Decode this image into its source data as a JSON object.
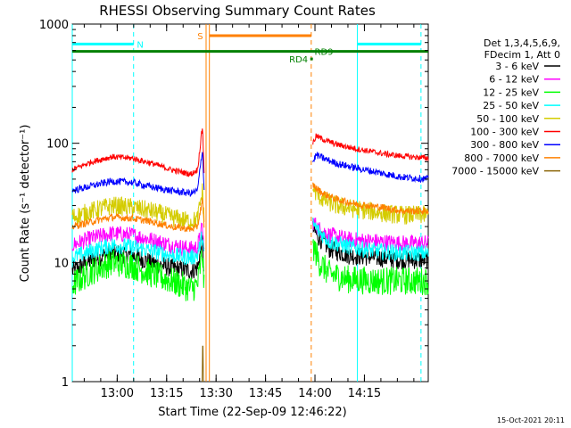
{
  "chart_data": {
    "type": "line",
    "title": "RHESSI Observing Summary Count Rates",
    "xlabel": "Start Time (22-Sep-09 12:46:22)",
    "ylabel": "Count Rate (s⁻¹ detector⁻¹)",
    "yscale": "log",
    "ylim": [
      1,
      1000
    ],
    "xlim_minutes": [
      0,
      108
    ],
    "x_unit": "minutes after 12:46:22",
    "x_ticks": [
      {
        "label": "13:00",
        "value": 13.63
      },
      {
        "label": "13:15",
        "value": 28.63
      },
      {
        "label": "13:30",
        "value": 43.63
      },
      {
        "label": "13:45",
        "value": 58.63
      },
      {
        "label": "14:00",
        "value": 73.63
      },
      {
        "label": "14:15",
        "value": 88.63
      }
    ],
    "y_ticks": [
      {
        "label": "1",
        "value": 1
      },
      {
        "label": "10",
        "value": 10
      },
      {
        "label": "100",
        "value": 100
      },
      {
        "label": "1000",
        "value": 1000
      }
    ],
    "legend": {
      "placement": "right",
      "header_lines": [
        "Det 1,3,4,5,6,9,",
        "FDecim 1, Att 0"
      ],
      "entries": [
        {
          "name": "3 - 6 keV",
          "color": "#000000"
        },
        {
          "name": "6 - 12 keV",
          "color": "#ff00ff"
        },
        {
          "name": "12 - 25 keV",
          "color": "#00ff00"
        },
        {
          "name": "25 - 50 keV",
          "color": "#00ffff"
        },
        {
          "name": "50 - 100 keV",
          "color": "#d4cc00"
        },
        {
          "name": "100 - 300 keV",
          "color": "#ff0000"
        },
        {
          "name": "300 - 800 keV",
          "color": "#0000ff"
        },
        {
          "name": "800 - 7000 keV",
          "color": "#ff8000"
        },
        {
          "name": "7000 - 15000 keV",
          "color": "#8b6508"
        }
      ]
    },
    "segments": [
      [
        0,
        40
      ],
      [
        73,
        108
      ]
    ],
    "series": [
      {
        "name": "3 - 6 keV",
        "color": "#000000",
        "noise": 0.08,
        "segments": [
          {
            "x": [
              0,
              6,
              12,
              18,
              24,
              30,
              36,
              38,
              39.5,
              40
            ],
            "y": [
              8.5,
              10.5,
              12,
              11.5,
              10,
              9,
              8.5,
              9,
              15,
              8
            ]
          },
          {
            "x": [
              73,
              75,
              78,
              84,
              92,
              100,
              108
            ],
            "y": [
              19,
              16,
              13,
              11.5,
              11,
              10.5,
              10.5
            ]
          }
        ]
      },
      {
        "name": "6 - 12 keV",
        "color": "#ff00ff",
        "noise": 0.07,
        "segments": [
          {
            "x": [
              0,
              6,
              12,
              18,
              24,
              30,
              36,
              38,
              39.5,
              40
            ],
            "y": [
              14,
              16,
              17.5,
              17,
              15.5,
              14,
              13,
              13.5,
              20,
              12
            ]
          },
          {
            "x": [
              73,
              75,
              78,
              84,
              92,
              100,
              108
            ],
            "y": [
              22,
              19,
              17,
              15.5,
              15,
              14.5,
              14.5
            ]
          }
        ]
      },
      {
        "name": "12 - 25 keV",
        "color": "#00ff00",
        "noise": 0.12,
        "segments": [
          {
            "x": [
              0,
              6,
              12,
              18,
              24,
              30,
              36,
              38,
              39.5,
              40
            ],
            "y": [
              6.5,
              8.5,
              10,
              9.5,
              8,
              7,
              6,
              6.5,
              12,
              6
            ]
          },
          {
            "x": [
              73,
              75,
              78,
              84,
              92,
              100,
              108
            ],
            "y": [
              14,
              10,
              8,
              7.2,
              7,
              7,
              7
            ]
          }
        ]
      },
      {
        "name": "25 - 50 keV",
        "color": "#00ffff",
        "noise": 0.07,
        "segments": [
          {
            "x": [
              0,
              6,
              12,
              18,
              24,
              30,
              36,
              38,
              39.5,
              40
            ],
            "y": [
              11,
              12.5,
              14,
              13.5,
              12.5,
              11.5,
              11,
              11.5,
              17,
              11
            ]
          },
          {
            "x": [
              73,
              75,
              78,
              84,
              92,
              100,
              108
            ],
            "y": [
              21,
              18,
              15,
              13.5,
              12.5,
              12,
              12
            ]
          }
        ]
      },
      {
        "name": "50 - 100 keV",
        "color": "#d4cc00",
        "noise": 0.08,
        "segments": [
          {
            "x": [
              0,
              6,
              12,
              18,
              24,
              30,
              36,
              38,
              39.5,
              40
            ],
            "y": [
              24,
              27,
              30,
              29,
              27,
              24,
              22,
              23,
              40,
              22
            ]
          },
          {
            "x": [
              73,
              74,
              76,
              80,
              86,
              94,
              100,
              108
            ],
            "y": [
              42,
              38,
              34,
              30,
              28,
              26,
              25,
              25
            ]
          }
        ]
      },
      {
        "name": "100 - 300 keV",
        "color": "#ff0000",
        "noise": 0.025,
        "segments": [
          {
            "x": [
              0,
              6,
              12,
              18,
              24,
              30,
              36,
              38,
              39.5,
              40
            ],
            "y": [
              60,
              70,
              77,
              75,
              68,
              60,
              55,
              60,
              140,
              58
            ]
          },
          {
            "x": [
              73,
              74,
              76,
              80,
              86,
              94,
              100,
              108
            ],
            "y": [
              100,
              115,
              108,
              98,
              90,
              82,
              78,
              75
            ]
          }
        ]
      },
      {
        "name": "300 - 800 keV",
        "color": "#0000ff",
        "noise": 0.03,
        "segments": [
          {
            "x": [
              0,
              6,
              12,
              18,
              24,
              30,
              36,
              38,
              39.5,
              40
            ],
            "y": [
              40,
              44,
              48,
              47,
              43,
              40,
              38,
              40,
              90,
              40
            ]
          },
          {
            "x": [
              73,
              74,
              76,
              80,
              86,
              94,
              100,
              108
            ],
            "y": [
              70,
              80,
              75,
              68,
              62,
              56,
              52,
              50
            ]
          }
        ]
      },
      {
        "name": "800 - 7000 keV",
        "color": "#ff8000",
        "noise": 0.03,
        "segments": [
          {
            "x": [
              0,
              6,
              12,
              18,
              24,
              30,
              36,
              38,
              39.5,
              40
            ],
            "y": [
              20,
              22,
              24,
              23.5,
              22,
              20,
              19,
              20,
              34,
              19
            ]
          },
          {
            "x": [
              73,
              74,
              76,
              80,
              86,
              94,
              100,
              108
            ],
            "y": [
              45,
              42,
              38,
              34,
              31,
              29,
              27,
              27
            ]
          }
        ]
      },
      {
        "name": "7000 - 15000 keV",
        "color": "#8b6508",
        "noise": 0.0,
        "segments": [
          {
            "x": [
              39.4,
              39.6,
              39.8
            ],
            "y": [
              1,
              2.8,
              1
            ]
          }
        ]
      }
    ],
    "vertical_lines": [
      {
        "x": 0,
        "color": "#00ffff",
        "style": "solid"
      },
      {
        "x": 18.6,
        "color": "#00ffff",
        "style": "dashed"
      },
      {
        "x": 40.6,
        "color": "#ff8000",
        "style": "solid"
      },
      {
        "x": 41.6,
        "color": "#ff8000",
        "style": "solid"
      },
      {
        "x": 72.5,
        "color": "#ff8000",
        "style": "dashed"
      },
      {
        "x": 86.5,
        "color": "#00ffff",
        "style": "solid"
      },
      {
        "x": 105.8,
        "color": "#00ffff",
        "style": "dashed"
      }
    ],
    "annotation_bars": [
      {
        "label": "N",
        "color": "#00ffff",
        "y": 680,
        "spans": [
          [
            0,
            18.6
          ],
          [
            86.5,
            105.8
          ]
        ],
        "label_x": 19.6,
        "label_anchor": "start"
      },
      {
        "label": "S",
        "color": "#ff8000",
        "y": 800,
        "spans": [
          [
            41.6,
            72.5
          ]
        ],
        "label_x": 39.7,
        "label_anchor": "end"
      },
      {
        "label": "",
        "color": "#008000",
        "y": 590,
        "spans": [
          [
            0,
            108
          ]
        ]
      },
      {
        "label": "RD9",
        "color": "#008000",
        "y": 590,
        "spans": [],
        "label_x": 73.5,
        "label_anchor": "start"
      },
      {
        "label": "RD4",
        "color": "#008000",
        "y": 510,
        "spans": [
          [
            72.2,
            73
          ]
        ],
        "label_x": 71.5,
        "label_anchor": "end"
      }
    ]
  },
  "footer": {
    "timestamp": "15-Oct-2021 20:11"
  }
}
